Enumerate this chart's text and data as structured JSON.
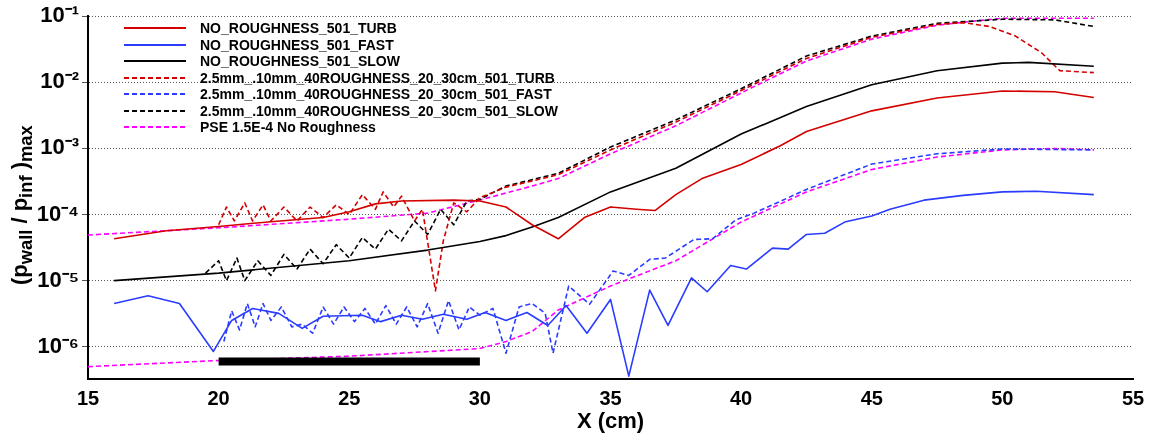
{
  "chart_data": {
    "type": "line",
    "xlabel": "X (cm)",
    "ylabel": "(p$_{wall}$ / p$_{inf}$ )$_{max}$",
    "xlim": [
      15,
      55
    ],
    "xticks": [
      15,
      20,
      25,
      30,
      35,
      40,
      45,
      50,
      55
    ],
    "ylim": [
      3.3e-07,
      0.1
    ],
    "yticks": [
      {
        "value": 1e-06,
        "label": "10⁻⁶"
      },
      {
        "value": 1e-05,
        "label": "10⁻⁵"
      },
      {
        "value": 0.0001,
        "label": "10⁻⁴"
      },
      {
        "value": 0.001,
        "label": "10⁻³"
      },
      {
        "value": 0.01,
        "label": "10⁻²"
      },
      {
        "value": 0.1,
        "label": "10⁻¹"
      }
    ],
    "log": "y",
    "grid": "y",
    "legend": "top left",
    "marker": "none",
    "series": [
      {
        "color": "#000000",
        "line_style": "solid",
        "x": [
          20,
          30
        ],
        "values": [
          6e-07,
          6e-07
        ]
      },
      {
        "name": "NO_ROUGHNESS_501_TURB",
        "color": "#d40000",
        "line_style": "solid",
        "x": [
          16,
          18,
          20,
          22,
          24,
          25,
          26,
          27,
          29,
          30,
          31,
          32,
          33,
          34,
          35,
          36,
          36.7,
          37.5,
          38.5,
          40,
          41.5,
          42.5,
          45,
          47.5,
          50,
          52,
          53.5
        ],
        "values": [
          4.3e-05,
          5.7e-05,
          6.6e-05,
          7.8e-05,
          9e-05,
          0.00011,
          0.000145,
          0.00016,
          0.000165,
          0.00016,
          0.00013,
          7e-05,
          4.3e-05,
          9e-05,
          0.00013,
          0.00012,
          0.000115,
          0.0002,
          0.00035,
          0.00057,
          0.0011,
          0.0018,
          0.0037,
          0.0058,
          0.0074,
          0.0072,
          0.0059
        ]
      },
      {
        "name": "NO_ROUGHNESS_501_FAST",
        "color": "#2a3cff",
        "line_style": "solid",
        "x": [
          16,
          17.3,
          18.5,
          19.8,
          20.5,
          21.3,
          22.3,
          23.2,
          24,
          25.5,
          26.2,
          27,
          27.8,
          28.6,
          29.5,
          30.2,
          31,
          31.8,
          32.6,
          33.3,
          34.1,
          35,
          35.7,
          36.5,
          37.2,
          38.1,
          38.7,
          39.6,
          40.2,
          41.2,
          41.8,
          42.5,
          43.2,
          44,
          45,
          45.7,
          47,
          48.5,
          50,
          51.3,
          53.5
        ],
        "values": [
          4.5e-06,
          5.9e-06,
          4.5e-06,
          8.5e-07,
          2.5e-06,
          3.8e-06,
          3.2e-06,
          1.9e-06,
          2.9e-06,
          3e-06,
          2.4e-06,
          3e-06,
          2.6e-06,
          3.1e-06,
          2.6e-06,
          3.3e-06,
          2.5e-06,
          3.3e-06,
          2.1e-06,
          4.2e-06,
          1.6e-06,
          5.2e-06,
          3.6e-07,
          7.2e-06,
          2.1e-06,
          1.1e-05,
          6.8e-06,
          1.7e-05,
          1.5e-05,
          3.1e-05,
          3e-05,
          5e-05,
          5.2e-05,
          7.8e-05,
          9.5e-05,
          0.00012,
          0.000165,
          0.000195,
          0.00022,
          0.000225,
          0.0002
        ]
      },
      {
        "name": "NO_ROUGHNESS_501_SLOW",
        "color": "#000000",
        "line_style": "solid",
        "x": [
          16,
          20,
          25,
          28,
          30,
          31,
          32,
          33,
          35,
          37.5,
          40,
          42.5,
          45,
          47.5,
          50,
          51,
          53.5
        ],
        "values": [
          1e-05,
          1.3e-05,
          2e-05,
          2.9e-05,
          3.9e-05,
          4.8e-05,
          6.5e-05,
          9e-05,
          0.00022,
          0.0005,
          0.00165,
          0.0043,
          0.0092,
          0.015,
          0.0195,
          0.02,
          0.0175
        ]
      },
      {
        "name": "2.5mm_.10mm_40ROUGHNESS_20_30cm_501_TURB",
        "color": "#d40000",
        "line_style": "dashed",
        "x": [
          20,
          20.3,
          20.6,
          21,
          21.3,
          21.7,
          22,
          22.5,
          23,
          23.5,
          24,
          24.5,
          25,
          25.5,
          26,
          26.3,
          26.7,
          27,
          27.5,
          27.8,
          28.3,
          28.6,
          29,
          29.5,
          30,
          31,
          33,
          35,
          37.5,
          40,
          42.5,
          45,
          47.5,
          48.5,
          49.5,
          50.5,
          51.5,
          52.2,
          53.5
        ],
        "values": [
          7e-05,
          0.00013,
          8e-05,
          0.00015,
          8e-05,
          0.00014,
          8e-05,
          0.00013,
          8e-05,
          0.00013,
          9e-05,
          0.00014,
          0.0001,
          0.0002,
          0.00012,
          0.00022,
          0.00013,
          0.00019,
          8e-05,
          0.00012,
          7e-06,
          4e-05,
          0.00015,
          0.00011,
          0.00018,
          0.00026,
          0.0004,
          0.00095,
          0.0025,
          0.0075,
          0.023,
          0.048,
          0.075,
          0.08,
          0.07,
          0.05,
          0.028,
          0.015,
          0.014
        ]
      },
      {
        "name": "2.5mm_.10mm_40ROUGHNESS_20_30cm_501_FAST",
        "color": "#2a3cff",
        "line_style": "dashed",
        "x": [
          20.2,
          20.5,
          20.8,
          21.1,
          21.4,
          21.7,
          22,
          22.4,
          22.8,
          23.2,
          23.6,
          24,
          24.4,
          24.8,
          25.2,
          25.6,
          26,
          26.4,
          26.8,
          27.2,
          27.6,
          28,
          28.4,
          28.8,
          29.2,
          29.6,
          30,
          30.5,
          31,
          31.5,
          32,
          32.5,
          32.8,
          33.4,
          34.2,
          35.1,
          35.7,
          36.5,
          37.1,
          38.2,
          38.9,
          39.8,
          40.5,
          42.5,
          45,
          47.5,
          50,
          53.5
        ],
        "values": [
          1.2e-06,
          3.5e-06,
          1.8e-06,
          4.5e-06,
          2e-06,
          4.5e-06,
          2.5e-06,
          4e-06,
          2e-06,
          2.2e-06,
          1.6e-06,
          4e-06,
          2.2e-06,
          4e-06,
          2.4e-06,
          3.8e-06,
          2.2e-06,
          4.2e-06,
          2.2e-06,
          4e-06,
          2e-06,
          4.5e-06,
          1.6e-06,
          5e-06,
          1.8e-06,
          4e-06,
          3e-06,
          3.8e-06,
          8e-07,
          4e-06,
          4.5e-06,
          3.2e-06,
          8e-07,
          8.3e-06,
          4.4e-06,
          1.4e-05,
          1.2e-05,
          2.1e-05,
          2.2e-05,
          4.2e-05,
          4.3e-05,
          8.3e-05,
          0.000105,
          0.00024,
          0.00058,
          0.00083,
          0.00098,
          0.00095
        ]
      },
      {
        "name": "2.5mm_.10mm_40ROUGHNESS_20_30cm_501_SLOW",
        "color": "#000000",
        "line_style": "dashed",
        "x": [
          19.5,
          20,
          20.3,
          20.7,
          21,
          21.5,
          22,
          22.5,
          23,
          23.5,
          24,
          24.5,
          25,
          25.5,
          26,
          26.5,
          27,
          27.5,
          28,
          28.5,
          29,
          29.5,
          30,
          31,
          33,
          35,
          37.5,
          40,
          42.5,
          45,
          47.5,
          50,
          52,
          53.5
        ],
        "values": [
          1.3e-05,
          2e-05,
          1e-05,
          2.2e-05,
          1e-05,
          2e-05,
          1.2e-05,
          2.5e-05,
          1.5e-05,
          3e-05,
          1.8e-05,
          3.5e-05,
          2.2e-05,
          4.5e-05,
          3e-05,
          6e-05,
          4e-05,
          8e-05,
          5e-05,
          0.00012,
          7e-05,
          0.00016,
          0.00017,
          0.00027,
          0.00042,
          0.00105,
          0.0027,
          0.008,
          0.025,
          0.05,
          0.078,
          0.09,
          0.088,
          0.07
        ]
      },
      {
        "name": "PSE 1.5E-4 No Roughness",
        "color": "#ff00ff",
        "line_style": "dashed",
        "x": [
          15,
          20,
          25,
          28,
          30,
          32,
          33,
          35,
          37.5,
          40,
          42.5,
          45,
          47.5,
          49,
          50,
          53.5
        ],
        "values": [
          4.9e-05,
          6.3e-05,
          8.5e-05,
          0.000105,
          0.000166,
          0.00027,
          0.00035,
          0.00083,
          0.0022,
          0.0069,
          0.021,
          0.045,
          0.073,
          0.085,
          0.093,
          0.093
        ]
      },
      {
        "color": "#ff00ff",
        "line_style": "dashed",
        "x": [
          15,
          20,
          25,
          30,
          31,
          32,
          33,
          35,
          37.5,
          40,
          42.5,
          45,
          47.5,
          50,
          52,
          53.5
        ],
        "values": [
          5e-07,
          6.2e-07,
          7.2e-07,
          9.4e-07,
          1.2e-06,
          1.7e-06,
          3.6e-06,
          8.3e-06,
          2e-05,
          7.7e-05,
          0.00022,
          0.00048,
          0.00074,
          0.00095,
          0.001,
          0.00095
        ]
      }
    ]
  }
}
